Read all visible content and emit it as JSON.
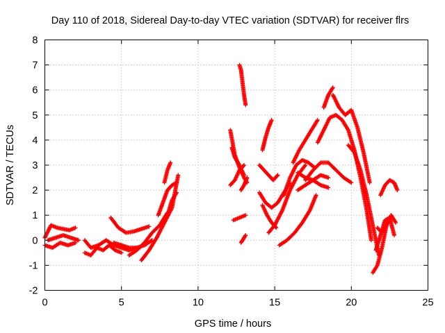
{
  "chart_data": {
    "type": "scatter",
    "title": "Day 110 of 2018, Sidereal Day-to-day VTEC variation (SDTVAR) for receiver flrs",
    "xlabel": "GPS time / hours",
    "ylabel": "SDTVAR / TECUs",
    "xlim": [
      0,
      25
    ],
    "ylim": [
      -2,
      8
    ],
    "xticks": [
      "0",
      "5",
      "10",
      "15",
      "20",
      "25"
    ],
    "yticks": [
      "-2",
      "-1",
      "0",
      "1",
      "2",
      "3",
      "4",
      "5",
      "6",
      "7",
      "8"
    ],
    "grid": true,
    "marker": "+",
    "color": "#ff0000",
    "series": [
      {
        "x": [
          0.0,
          0.4,
          0.8,
          1.2,
          1.6,
          2.0
        ],
        "y": [
          0.1,
          0.6,
          0.5,
          0.45,
          0.4,
          0.5
        ]
      },
      {
        "x": [
          0.0,
          0.5,
          1.0,
          1.5,
          2.0
        ],
        "y": [
          -0.2,
          -0.3,
          -0.1,
          -0.2,
          -0.1
        ]
      },
      {
        "x": [
          0.2,
          0.7,
          1.2,
          1.7,
          2.2
        ],
        "y": [
          0.0,
          0.1,
          0.2,
          0.1,
          0.0
        ]
      },
      {
        "x": [
          2.6,
          3.0,
          3.4,
          3.8,
          4.2,
          4.6,
          5.0
        ],
        "y": [
          -0.5,
          -0.6,
          -0.3,
          -0.4,
          -0.2,
          -0.4,
          -0.5
        ]
      },
      {
        "x": [
          2.6,
          3.0,
          3.5,
          4.0,
          4.5,
          5.0,
          5.5,
          6.0
        ],
        "y": [
          0.0,
          -0.3,
          -0.2,
          0.0,
          -0.2,
          -0.3,
          -0.4,
          -0.3
        ]
      },
      {
        "x": [
          4.3,
          4.8,
          5.3,
          5.8,
          6.3,
          6.8
        ],
        "y": [
          0.9,
          0.5,
          0.3,
          0.35,
          0.45,
          0.55
        ]
      },
      {
        "x": [
          4.5,
          5.0,
          5.5,
          6.0,
          6.5,
          7.0
        ],
        "y": [
          -0.1,
          -0.2,
          -0.3,
          -0.3,
          -0.2,
          0.0
        ]
      },
      {
        "x": [
          6.3,
          6.8,
          7.3,
          7.8,
          8.3,
          8.7
        ],
        "y": [
          -0.8,
          -0.4,
          0.1,
          0.7,
          1.3,
          2.6
        ]
      },
      {
        "x": [
          5.5,
          6.0,
          6.5,
          7.0,
          7.5,
          8.0
        ],
        "y": [
          -0.6,
          -0.4,
          -0.1,
          0.3,
          0.6,
          1.1
        ]
      },
      {
        "x": [
          7.4,
          7.7,
          8.0,
          8.3,
          8.6
        ],
        "y": [
          1.0,
          1.5,
          2.0,
          2.2,
          2.3
        ]
      },
      {
        "x": [
          7.8,
          8.0,
          8.2
        ],
        "y": [
          2.3,
          2.8,
          3.1
        ]
      },
      {
        "x": [
          8.0,
          8.3,
          8.6
        ],
        "y": [
          1.0,
          1.6,
          1.9
        ]
      },
      {
        "x": [
          12.7,
          12.8,
          12.9,
          13.0,
          13.1
        ],
        "y": [
          7.0,
          6.8,
          6.3,
          5.8,
          5.4
        ]
      },
      {
        "x": [
          12.1,
          12.4,
          12.7,
          13.0,
          13.2
        ],
        "y": [
          4.4,
          3.4,
          2.9,
          2.5,
          2.3
        ]
      },
      {
        "x": [
          12.2,
          12.4,
          12.7,
          13.0
        ],
        "y": [
          3.7,
          3.3,
          3.0,
          2.6
        ]
      },
      {
        "x": [
          12.1,
          12.4,
          12.7,
          13.0
        ],
        "y": [
          2.2,
          2.4,
          2.8,
          3.0
        ]
      },
      {
        "x": [
          12.8,
          13.0,
          13.2
        ],
        "y": [
          2.0,
          2.2,
          2.5
        ]
      },
      {
        "x": [
          12.3,
          12.7,
          13.1
        ],
        "y": [
          0.8,
          0.9,
          1.0
        ]
      },
      {
        "x": [
          12.8,
          13.0,
          13.1
        ],
        "y": [
          -0.1,
          0.1,
          0.2
        ]
      },
      {
        "x": [
          14.0,
          14.3,
          14.6,
          14.9,
          15.2
        ],
        "y": [
          3.0,
          2.8,
          2.6,
          2.4,
          2.6
        ]
      },
      {
        "x": [
          14.2,
          14.4,
          14.6,
          14.8
        ],
        "y": [
          3.6,
          4.1,
          4.5,
          4.8
        ]
      },
      {
        "x": [
          14.0,
          14.4,
          14.8,
          15.2,
          15.6,
          16.0
        ],
        "y": [
          1.9,
          1.5,
          1.3,
          1.5,
          1.9,
          2.3
        ]
      },
      {
        "x": [
          14.2,
          14.5,
          14.8,
          15.1
        ],
        "y": [
          1.4,
          1.0,
          0.7,
          0.5
        ]
      },
      {
        "x": [
          14.6,
          15.0,
          15.5,
          16.0,
          16.5,
          17.0
        ],
        "y": [
          0.3,
          0.6,
          1.2,
          2.0,
          2.6,
          3.0
        ]
      },
      {
        "x": [
          15.3,
          15.8,
          16.3,
          16.8,
          17.3,
          17.7
        ],
        "y": [
          -0.2,
          0.0,
          0.3,
          0.7,
          1.2,
          1.8
        ]
      },
      {
        "x": [
          15.6,
          16.0,
          16.4,
          16.8,
          17.2,
          17.6
        ],
        "y": [
          1.8,
          2.5,
          3.0,
          3.2,
          3.1,
          2.9
        ]
      },
      {
        "x": [
          16.2,
          16.6,
          17.0,
          17.4,
          17.8
        ],
        "y": [
          3.1,
          3.6,
          4.0,
          4.4,
          4.8
        ]
      },
      {
        "x": [
          16.5,
          17.0,
          17.5,
          18.0,
          18.5
        ],
        "y": [
          2.7,
          2.5,
          2.4,
          2.2,
          2.1
        ]
      },
      {
        "x": [
          16.5,
          17.0,
          17.5,
          18.0,
          18.5
        ],
        "y": [
          2.0,
          2.2,
          2.4,
          2.6,
          2.5
        ]
      },
      {
        "x": [
          17.0,
          17.5,
          18.0,
          18.5,
          19.0,
          19.5,
          20.0
        ],
        "y": [
          2.4,
          2.8,
          3.1,
          3.1,
          2.8,
          2.5,
          2.3
        ]
      },
      {
        "x": [
          17.8,
          18.2,
          18.6,
          19.0,
          19.4,
          19.8,
          20.2,
          20.6,
          21.0,
          21.3
        ],
        "y": [
          3.9,
          4.4,
          4.9,
          5.0,
          4.8,
          4.4,
          3.6,
          2.5,
          1.2,
          0.0
        ]
      },
      {
        "x": [
          18.2,
          18.5,
          18.8
        ],
        "y": [
          5.3,
          5.8,
          6.1
        ]
      },
      {
        "x": [
          18.8,
          19.2,
          19.6,
          20.0,
          20.4,
          20.8,
          21.2
        ],
        "y": [
          5.8,
          5.3,
          5.0,
          5.2,
          4.5,
          3.5,
          2.3
        ]
      },
      {
        "x": [
          19.8,
          20.2,
          20.6,
          21.0,
          21.4,
          21.8
        ],
        "y": [
          3.8,
          3.5,
          2.8,
          1.8,
          0.6,
          -0.6
        ]
      },
      {
        "x": [
          21.4,
          21.7,
          22.0,
          22.3,
          22.6,
          22.9
        ],
        "y": [
          -1.3,
          -1.0,
          -0.3,
          0.6,
          1.0,
          0.7
        ]
      },
      {
        "x": [
          21.6,
          21.9,
          22.2,
          22.5,
          22.8
        ],
        "y": [
          -0.4,
          0.2,
          0.8,
          0.9,
          0.2
        ]
      },
      {
        "x": [
          21.7,
          22.0,
          22.3,
          22.6
        ],
        "y": [
          0.5,
          0.3,
          0.6,
          1.0
        ]
      },
      {
        "x": [
          21.9,
          22.2,
          22.5,
          22.8,
          23.0
        ],
        "y": [
          1.8,
          2.2,
          2.4,
          2.3,
          2.0
        ]
      }
    ]
  }
}
